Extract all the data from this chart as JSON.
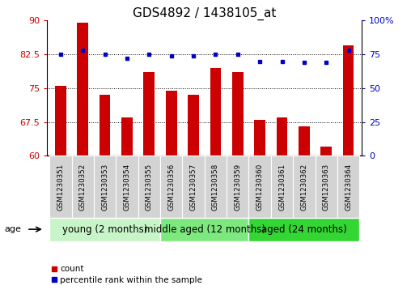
{
  "title": "GDS4892 / 1438105_at",
  "samples": [
    "GSM1230351",
    "GSM1230352",
    "GSM1230353",
    "GSM1230354",
    "GSM1230355",
    "GSM1230356",
    "GSM1230357",
    "GSM1230358",
    "GSM1230359",
    "GSM1230360",
    "GSM1230361",
    "GSM1230362",
    "GSM1230363",
    "GSM1230364"
  ],
  "count_values": [
    75.5,
    89.5,
    73.5,
    68.5,
    78.5,
    74.5,
    73.5,
    79.5,
    78.5,
    68.0,
    68.5,
    66.5,
    62.0,
    84.5
  ],
  "percentile_values": [
    75,
    78,
    75,
    72,
    75,
    74,
    74,
    75,
    75,
    70,
    70,
    69,
    69,
    78
  ],
  "ylim_left": [
    60,
    90
  ],
  "ylim_right": [
    0,
    100
  ],
  "yticks_left": [
    60,
    67.5,
    75,
    82.5,
    90
  ],
  "yticks_right": [
    0,
    25,
    50,
    75,
    100
  ],
  "ytick_labels_left": [
    "60",
    "67.5",
    "75",
    "82.5",
    "90"
  ],
  "ytick_labels_right": [
    "0",
    "25",
    "50",
    "75",
    "100%"
  ],
  "hlines": [
    67.5,
    75,
    82.5
  ],
  "groups": [
    {
      "label": "young (2 months)",
      "start": 0,
      "end": 4,
      "color": "#c8f5c8"
    },
    {
      "label": "middle aged (12 months)",
      "start": 5,
      "end": 8,
      "color": "#7de87d"
    },
    {
      "label": "aged (24 months)",
      "start": 9,
      "end": 13,
      "color": "#33d633"
    }
  ],
  "bar_color": "#cc0000",
  "dot_color": "#0000cc",
  "bar_width": 0.5,
  "age_label": "age",
  "legend_count_label": "count",
  "legend_pct_label": "percentile rank within the sample",
  "title_fontsize": 11,
  "tick_fontsize": 8,
  "label_fontsize": 8,
  "group_label_fontsize": 8.5,
  "background_color": "#ffffff",
  "plot_bg_color": "#ffffff",
  "xticklabel_bg": "#d3d3d3",
  "baseline": 60
}
